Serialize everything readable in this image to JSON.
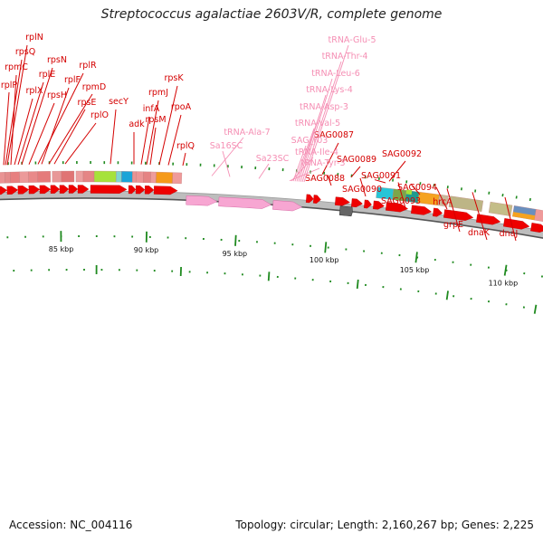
{
  "title": "Streptococcus agalactiae 2603V/R, complete genome",
  "footer": {
    "accession": "Accession: NC_004116",
    "topology": "Topology: circular; Length: 2,160,267 bp; Genes: 2,225"
  },
  "colors": {
    "gene_label": "#d40000",
    "rna_label": "#f58fb4",
    "cds_arrow": "#ee0000",
    "rna_arrow": "#f7a6d2",
    "tick_green": "#1f8a1f",
    "backbone": "#8a8a8a"
  },
  "scale_labels": [
    "85 kbp",
    "90 kbp",
    "95 kbp",
    "100 kbp",
    "105 kbp",
    "110 kbp"
  ],
  "gene_labels": [
    "rplN",
    "rpsQ",
    "rpsN",
    "rpmC",
    "rplE",
    "rplR",
    "rplP",
    "rplX",
    "rpsH",
    "rplF",
    "rpmD",
    "rpsE",
    "rplO",
    "secY",
    "adk",
    "infA",
    "rpmJ",
    "rpsK",
    "rpsM",
    "rpoA",
    "rplQ",
    "SAG0087",
    "SAG0088",
    "SAG0089",
    "SAG0090",
    "SAG0091",
    "SAG0092",
    "SAG0093",
    "SAG0094",
    "hrcA",
    "grpE",
    "dnaK",
    "dnaJ"
  ],
  "rna_labels": [
    "tRNA-Glu-5",
    "tRNA-Thr-4",
    "tRNA-Leu-6",
    "tRNA-Lys-4",
    "tRNA-Asp-3",
    "tRNA-Val-5",
    "SAG_r03",
    "tRNA-Ile-4",
    "tRNA-Tyr-3",
    "tRNA-Ala-7",
    "Sa16SC",
    "Sa23SC"
  ]
}
